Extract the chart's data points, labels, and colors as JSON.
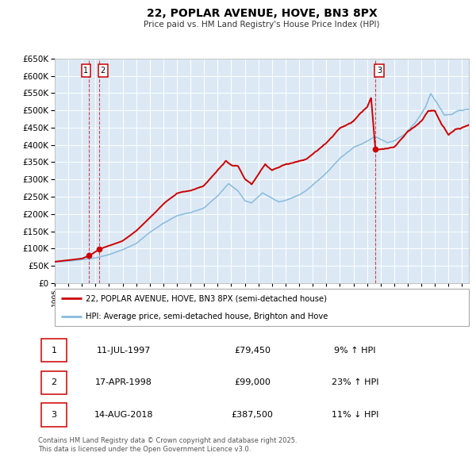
{
  "title": "22, POPLAR AVENUE, HOVE, BN3 8PX",
  "subtitle": "Price paid vs. HM Land Registry's House Price Index (HPI)",
  "property_label": "22, POPLAR AVENUE, HOVE, BN3 8PX (semi-detached house)",
  "hpi_label": "HPI: Average price, semi-detached house, Brighton and Hove",
  "ylim": [
    0,
    650000
  ],
  "yticks": [
    0,
    50000,
    100000,
    150000,
    200000,
    250000,
    300000,
    350000,
    400000,
    450000,
    500000,
    550000,
    600000,
    650000
  ],
  "background_color": "#dce9f5",
  "red_color": "#cc0000",
  "blue_color": "#88bbdd",
  "transactions": [
    {
      "num": "1",
      "date": "11-JUL-1997",
      "price": 79450,
      "price_str": "£79,450",
      "year": 1997.53,
      "pct_str": "9% ↑ HPI"
    },
    {
      "num": "2",
      "date": "17-APR-1998",
      "price": 99000,
      "price_str": "£99,000",
      "year": 1998.29,
      "pct_str": "23% ↑ HPI"
    },
    {
      "num": "3",
      "date": "14-AUG-2018",
      "price": 387500,
      "price_str": "£387,500",
      "year": 2018.62,
      "pct_str": "11% ↓ HPI"
    }
  ],
  "footer": "Contains HM Land Registry data © Crown copyright and database right 2025.\nThis data is licensed under the Open Government Licence v3.0.",
  "xstart": 1995.0,
  "xend": 2025.5,
  "hpi_keypoints": [
    [
      1995.0,
      61000
    ],
    [
      1996.0,
      64000
    ],
    [
      1997.0,
      68000
    ],
    [
      1998.0,
      73000
    ],
    [
      1999.0,
      83000
    ],
    [
      2000.0,
      97000
    ],
    [
      2001.0,
      115000
    ],
    [
      2002.0,
      148000
    ],
    [
      2003.0,
      175000
    ],
    [
      2004.0,
      198000
    ],
    [
      2005.0,
      208000
    ],
    [
      2006.0,
      222000
    ],
    [
      2007.0,
      256000
    ],
    [
      2007.8,
      292000
    ],
    [
      2008.5,
      272000
    ],
    [
      2009.0,
      243000
    ],
    [
      2009.5,
      237000
    ],
    [
      2010.3,
      267000
    ],
    [
      2011.0,
      252000
    ],
    [
      2011.5,
      240000
    ],
    [
      2012.0,
      245000
    ],
    [
      2013.0,
      261000
    ],
    [
      2013.5,
      272000
    ],
    [
      2014.0,
      288000
    ],
    [
      2015.0,
      322000
    ],
    [
      2016.0,
      368000
    ],
    [
      2017.0,
      398000
    ],
    [
      2018.0,
      418000
    ],
    [
      2018.6,
      432000
    ],
    [
      2019.0,
      422000
    ],
    [
      2019.5,
      412000
    ],
    [
      2020.0,
      418000
    ],
    [
      2020.8,
      438000
    ],
    [
      2021.5,
      470000
    ],
    [
      2022.3,
      518000
    ],
    [
      2022.7,
      558000
    ],
    [
      2023.2,
      525000
    ],
    [
      2023.7,
      492000
    ],
    [
      2024.2,
      495000
    ],
    [
      2024.7,
      508000
    ],
    [
      2025.5,
      512000
    ]
  ],
  "prop_keypoints": [
    [
      1995.0,
      62000
    ],
    [
      1996.0,
      66000
    ],
    [
      1997.0,
      71000
    ],
    [
      1997.53,
      79450
    ],
    [
      1997.8,
      86000
    ],
    [
      1998.29,
      99000
    ],
    [
      1999.0,
      109000
    ],
    [
      2000.0,
      124000
    ],
    [
      2001.0,
      152000
    ],
    [
      2002.0,
      190000
    ],
    [
      2003.0,
      230000
    ],
    [
      2004.0,
      262000
    ],
    [
      2005.0,
      272000
    ],
    [
      2006.0,
      288000
    ],
    [
      2007.0,
      332000
    ],
    [
      2007.6,
      358000
    ],
    [
      2008.0,
      345000
    ],
    [
      2008.5,
      342000
    ],
    [
      2009.0,
      305000
    ],
    [
      2009.5,
      288000
    ],
    [
      2010.0,
      315000
    ],
    [
      2010.5,
      345000
    ],
    [
      2011.0,
      328000
    ],
    [
      2011.5,
      338000
    ],
    [
      2012.0,
      348000
    ],
    [
      2013.0,
      358000
    ],
    [
      2013.5,
      362000
    ],
    [
      2014.0,
      378000
    ],
    [
      2015.0,
      415000
    ],
    [
      2016.0,
      458000
    ],
    [
      2017.0,
      478000
    ],
    [
      2017.5,
      498000
    ],
    [
      2018.0,
      515000
    ],
    [
      2018.3,
      542000
    ],
    [
      2018.62,
      387500
    ],
    [
      2018.9,
      388000
    ],
    [
      2019.5,
      392000
    ],
    [
      2020.0,
      398000
    ],
    [
      2020.5,
      418000
    ],
    [
      2021.0,
      442000
    ],
    [
      2022.0,
      468000
    ],
    [
      2022.5,
      498000
    ],
    [
      2023.0,
      502000
    ],
    [
      2023.5,
      462000
    ],
    [
      2024.0,
      432000
    ],
    [
      2024.5,
      448000
    ],
    [
      2025.5,
      462000
    ]
  ]
}
